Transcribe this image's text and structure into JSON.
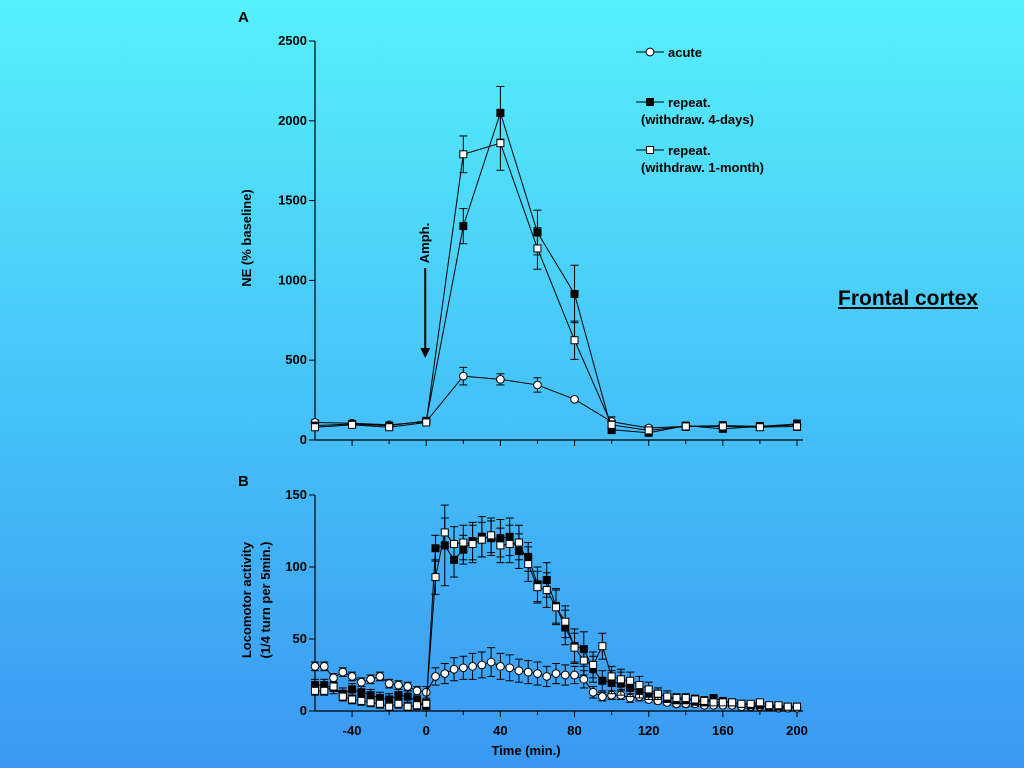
{
  "region_label": "Frontal cortex",
  "chart_data": [
    {
      "panel_label": "A",
      "type": "line",
      "ylabel": "NE (% baseline)",
      "xlabel": "",
      "ylim": [
        0,
        2500
      ],
      "yticks": [
        0,
        500,
        1000,
        1500,
        2000,
        2500
      ],
      "xlim": [
        -60,
        200
      ],
      "annotation": "Amph.",
      "annotation_x": 0,
      "legend": [
        "acute",
        "repeat.\n(withdraw. 4-days)",
        "repeat.\n(withdraw. 1-month)"
      ],
      "legend_lines": [
        [
          "acute"
        ],
        [
          "repeat.",
          "(withdraw. 4-days)"
        ],
        [
          "repeat.",
          "(withdraw. 1-month)"
        ]
      ],
      "legend_position": "top-right",
      "series": [
        {
          "marker": "open-circle",
          "x": [
            -60,
            -40,
            -20,
            0,
            20,
            40,
            60,
            80,
            100,
            120,
            140,
            160,
            180,
            200
          ],
          "y": [
            110,
            105,
            95,
            115,
            400,
            380,
            345,
            255,
            115,
            75,
            85,
            90,
            85,
            95
          ],
          "err": [
            15,
            15,
            15,
            10,
            55,
            35,
            45,
            0,
            30,
            15,
            25,
            25,
            25,
            25
          ]
        },
        {
          "marker": "filled-square",
          "x": [
            -60,
            -40,
            -20,
            0,
            20,
            40,
            60,
            80,
            100,
            120,
            140,
            160,
            180,
            200
          ],
          "y": [
            90,
            100,
            90,
            120,
            1340,
            2050,
            1300,
            915,
            65,
            45,
            90,
            70,
            85,
            100
          ],
          "err": [
            15,
            15,
            15,
            10,
            110,
            165,
            140,
            180,
            25,
            15,
            20,
            20,
            20,
            25
          ]
        },
        {
          "marker": "open-square",
          "x": [
            -60,
            -40,
            -20,
            0,
            20,
            40,
            60,
            80,
            100,
            120,
            140,
            160,
            180,
            200
          ],
          "y": [
            80,
            95,
            80,
            110,
            1790,
            1860,
            1200,
            625,
            95,
            60,
            85,
            85,
            80,
            85
          ],
          "err": [
            15,
            15,
            15,
            10,
            115,
            170,
            130,
            120,
            25,
            15,
            20,
            20,
            20,
            25
          ]
        }
      ]
    },
    {
      "panel_label": "B",
      "type": "line",
      "ylabel": "Locomotor activity\n(1/4 turn per 5min.)",
      "ylabel_lines": [
        "Locomotor activity",
        "(1/4 turn per 5min.)"
      ],
      "xlabel": "Time (min.)",
      "ylim": [
        0,
        150
      ],
      "yticks": [
        0,
        50,
        100,
        150
      ],
      "xlim": [
        -60,
        200
      ],
      "xticks": [
        -40,
        0,
        40,
        80,
        120,
        160,
        200
      ],
      "series": [
        {
          "marker": "open-circle",
          "x": [
            -60,
            -55,
            -50,
            -45,
            -40,
            -35,
            -30,
            -25,
            -20,
            -15,
            -10,
            -5,
            0,
            5,
            10,
            15,
            20,
            25,
            30,
            35,
            40,
            45,
            50,
            55,
            60,
            65,
            70,
            75,
            80,
            85,
            90,
            95,
            100,
            105,
            110,
            115,
            120,
            125,
            130,
            135,
            140,
            145,
            150,
            155,
            160,
            165,
            170,
            175,
            180,
            185,
            190,
            195,
            200
          ],
          "y": [
            31,
            31,
            23,
            27,
            24,
            20,
            22,
            24,
            19,
            18,
            17,
            14,
            13,
            24,
            26,
            29,
            30,
            31,
            32,
            34,
            31,
            30,
            28,
            27,
            26,
            24,
            26,
            25,
            25,
            22,
            13,
            10,
            11,
            11,
            9,
            10,
            8,
            7,
            6,
            5,
            5,
            5,
            4,
            4,
            4,
            4,
            3,
            3,
            3,
            3,
            2,
            2,
            2
          ],
          "err": [
            3,
            3,
            3,
            3,
            3,
            3,
            3,
            3,
            3,
            3,
            3,
            3,
            4,
            6,
            7,
            8,
            8,
            9,
            9,
            10,
            9,
            9,
            8,
            8,
            8,
            7,
            7,
            7,
            6,
            6,
            4,
            3,
            3,
            3,
            3,
            3,
            2,
            2,
            2,
            2,
            2,
            2,
            1,
            1,
            1,
            1,
            1,
            1,
            1,
            1,
            1,
            1,
            1
          ]
        },
        {
          "marker": "filled-square",
          "x": [
            -60,
            -55,
            -50,
            -45,
            -40,
            -35,
            -30,
            -25,
            -20,
            -15,
            -10,
            -5,
            0,
            5,
            10,
            15,
            20,
            25,
            30,
            35,
            40,
            45,
            50,
            55,
            60,
            65,
            70,
            75,
            80,
            85,
            90,
            95,
            100,
            105,
            110,
            115,
            120,
            125,
            130,
            135,
            140,
            145,
            150,
            155,
            160,
            165,
            170,
            175,
            180,
            185,
            190,
            195,
            200
          ],
          "y": [
            18,
            18,
            16,
            12,
            15,
            13,
            11,
            9,
            8,
            11,
            10,
            7,
            4,
            113,
            115,
            105,
            112,
            118,
            121,
            120,
            120,
            121,
            111,
            107,
            88,
            91,
            73,
            58,
            45,
            43,
            29,
            21,
            20,
            19,
            16,
            14,
            12,
            12,
            9,
            8,
            8,
            7,
            6,
            9,
            7,
            6,
            5,
            4,
            4,
            3,
            3,
            3,
            3
          ],
          "err": [
            4,
            4,
            4,
            4,
            4,
            4,
            4,
            4,
            4,
            4,
            4,
            3,
            3,
            9,
            28,
            12,
            10,
            13,
            14,
            12,
            13,
            13,
            12,
            10,
            12,
            12,
            12,
            12,
            12,
            12,
            9,
            7,
            8,
            8,
            6,
            5,
            4,
            4,
            3,
            3,
            3,
            3,
            2,
            2,
            2,
            2,
            2,
            2,
            1,
            1,
            1,
            1,
            1
          ]
        },
        {
          "marker": "open-square",
          "x": [
            -60,
            -55,
            -50,
            -45,
            -40,
            -35,
            -30,
            -25,
            -20,
            -15,
            -10,
            -5,
            0,
            5,
            10,
            15,
            20,
            25,
            30,
            35,
            40,
            45,
            50,
            55,
            60,
            65,
            70,
            75,
            80,
            85,
            90,
            95,
            100,
            105,
            110,
            115,
            120,
            125,
            130,
            135,
            140,
            145,
            150,
            155,
            160,
            165,
            170,
            175,
            180,
            185,
            190,
            195,
            200
          ],
          "y": [
            14,
            14,
            17,
            10,
            8,
            7,
            6,
            5,
            3,
            5,
            3,
            4,
            5,
            93,
            124,
            116,
            117,
            116,
            119,
            122,
            115,
            116,
            117,
            102,
            86,
            84,
            72,
            62,
            44,
            35,
            32,
            45,
            24,
            22,
            21,
            18,
            15,
            12,
            10,
            9,
            9,
            8,
            7,
            6,
            6,
            6,
            5,
            5,
            6,
            4,
            4,
            3,
            3
          ],
          "err": [
            3,
            3,
            3,
            3,
            3,
            3,
            3,
            3,
            3,
            3,
            3,
            3,
            3,
            12,
            10,
            12,
            12,
            13,
            12,
            12,
            12,
            13,
            12,
            12,
            11,
            12,
            12,
            11,
            10,
            10,
            9,
            9,
            7,
            7,
            6,
            6,
            5,
            4,
            4,
            3,
            3,
            3,
            3,
            2,
            2,
            2,
            2,
            2,
            2,
            1,
            1,
            1,
            1
          ]
        }
      ]
    }
  ]
}
